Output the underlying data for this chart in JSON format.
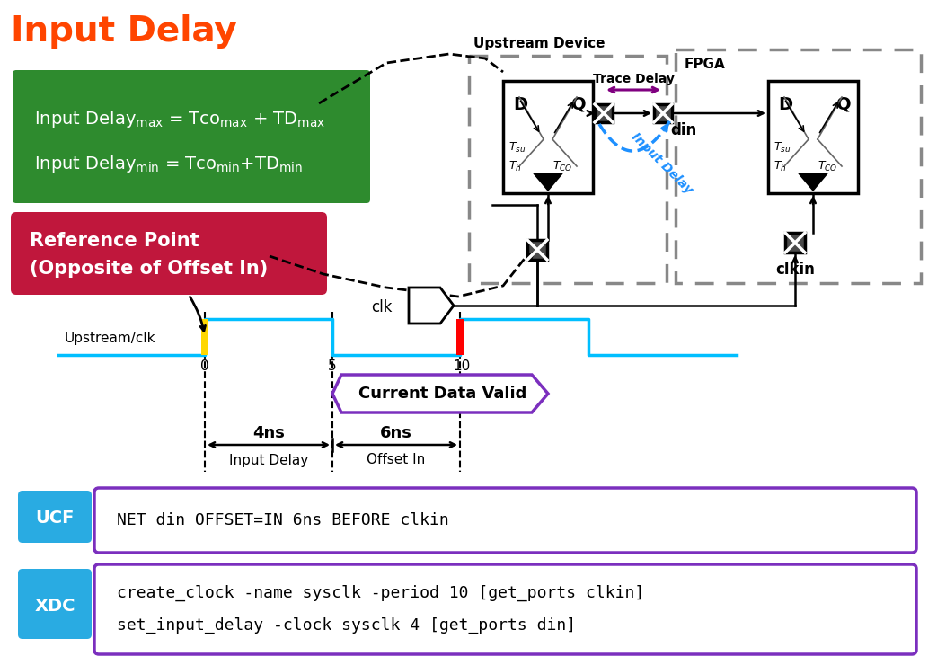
{
  "title": "Input Delay",
  "title_color": "#FF4500",
  "title_fontsize": 28,
  "bg_color": "#FFFFFF",
  "green_color": "#2E8B2E",
  "red_box_color": "#C0173C",
  "ucf_text": "NET din OFFSET=IN 6ns BEFORE clkin",
  "xdc_text1": "create_clock -name sysclk -period 10 [get_ports clkin]",
  "xdc_text2": "set_input_delay -clock sysclk 4 [get_ports din]",
  "cyan_color": "#29ABE2",
  "purple_color": "#7B2FBE",
  "clock_color": "#00BFFF",
  "yellow_color": "#FFD700",
  "red_color": "#FF0000",
  "blue_color": "#1E90FF",
  "gray_dash": "#888888"
}
